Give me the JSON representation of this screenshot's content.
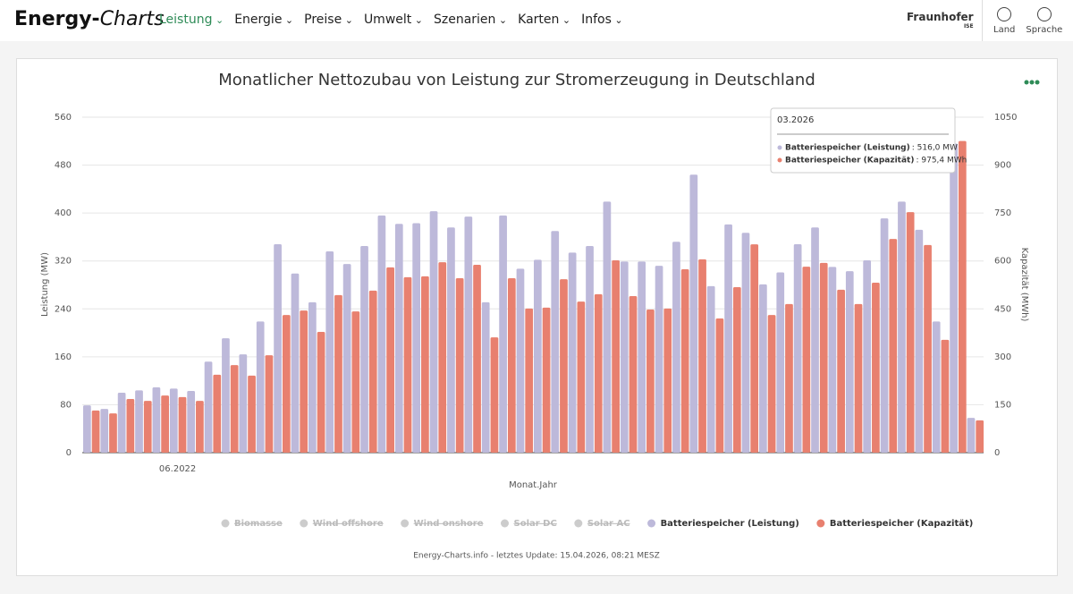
{
  "header": {
    "brand": {
      "first": "Energy-",
      "second": "Charts"
    },
    "menu": [
      "Leistung",
      "Energie",
      "Preise",
      "Umwelt",
      "Szenarien",
      "Karten",
      "Infos"
    ],
    "partner": {
      "name": "Fraunhofer",
      "sub": "ISE"
    },
    "tools": [
      "Land",
      "Sprache"
    ]
  },
  "chart_data": {
    "type": "bar",
    "title": "Monatlicher Nettozubau von Leistung zur Stromerzeugung in Deutschland",
    "xlabel": "Monat.Jahr",
    "ylabel": "Leistung (MW)",
    "y2label": "Kapazität (MWh)",
    "categories": [
      null,
      null,
      null,
      null,
      null,
      "06.2022",
      null,
      null,
      null,
      null,
      null,
      null,
      null,
      null,
      null,
      null,
      null,
      null,
      null,
      null,
      null,
      null,
      null,
      null,
      null,
      null,
      null,
      null,
      null,
      null,
      null,
      null,
      null,
      null,
      null,
      null,
      null,
      null,
      null,
      null,
      null,
      null,
      null,
      null,
      null,
      null,
      null,
      null,
      null,
      null,
      null,
      null
    ],
    "ylim": [
      0,
      560
    ],
    "yticks": [
      0,
      80,
      160,
      240,
      320,
      400,
      480,
      560
    ],
    "y2lim": [
      0,
      1050
    ],
    "y2ticks": [
      0,
      150,
      300,
      450,
      600,
      750,
      900,
      1050
    ],
    "grid": true,
    "legend_hidden": [
      "Biomasse",
      "Wind offshore",
      "Wind onshore",
      "Solar DC",
      "Solar AC"
    ],
    "series": [
      {
        "name": "Batteriespeicher (Leistung)",
        "color": "#bdb9da",
        "values": [
          79,
          73,
          100,
          104,
          109,
          107,
          103,
          152,
          191,
          164,
          219,
          348,
          299,
          251,
          336,
          315,
          345,
          396,
          382,
          383,
          403,
          376,
          394,
          251,
          396,
          307,
          322,
          370,
          334,
          345,
          419,
          319,
          319,
          312,
          352,
          464,
          278,
          381,
          367,
          281,
          301,
          348,
          376,
          310,
          303,
          321,
          391,
          419,
          372,
          219,
          516,
          58
        ]
      },
      {
        "name": "Batteriespeicher (Kapazität)",
        "color": "#e8806f",
        "axis": "y2",
        "values": [
          132,
          123,
          168,
          162,
          179,
          174,
          162,
          244,
          274,
          241,
          305,
          431,
          445,
          378,
          493,
          442,
          507,
          580,
          549,
          552,
          596,
          546,
          588,
          361,
          546,
          451,
          454,
          543,
          473,
          496,
          602,
          490,
          448,
          451,
          574,
          605,
          420,
          518,
          652,
          431,
          465,
          582,
          594,
          510,
          465,
          532,
          669,
          753,
          650,
          353,
          975.4,
          101
        ]
      }
    ],
    "tooltip": {
      "title": "03.2026",
      "rows": [
        ": 516,0 MW",
        ": 975,4 MWh"
      ]
    }
  },
  "footer": "Energy-Charts.info - letztes Update: 15.04.2026, 08:21 MESZ"
}
